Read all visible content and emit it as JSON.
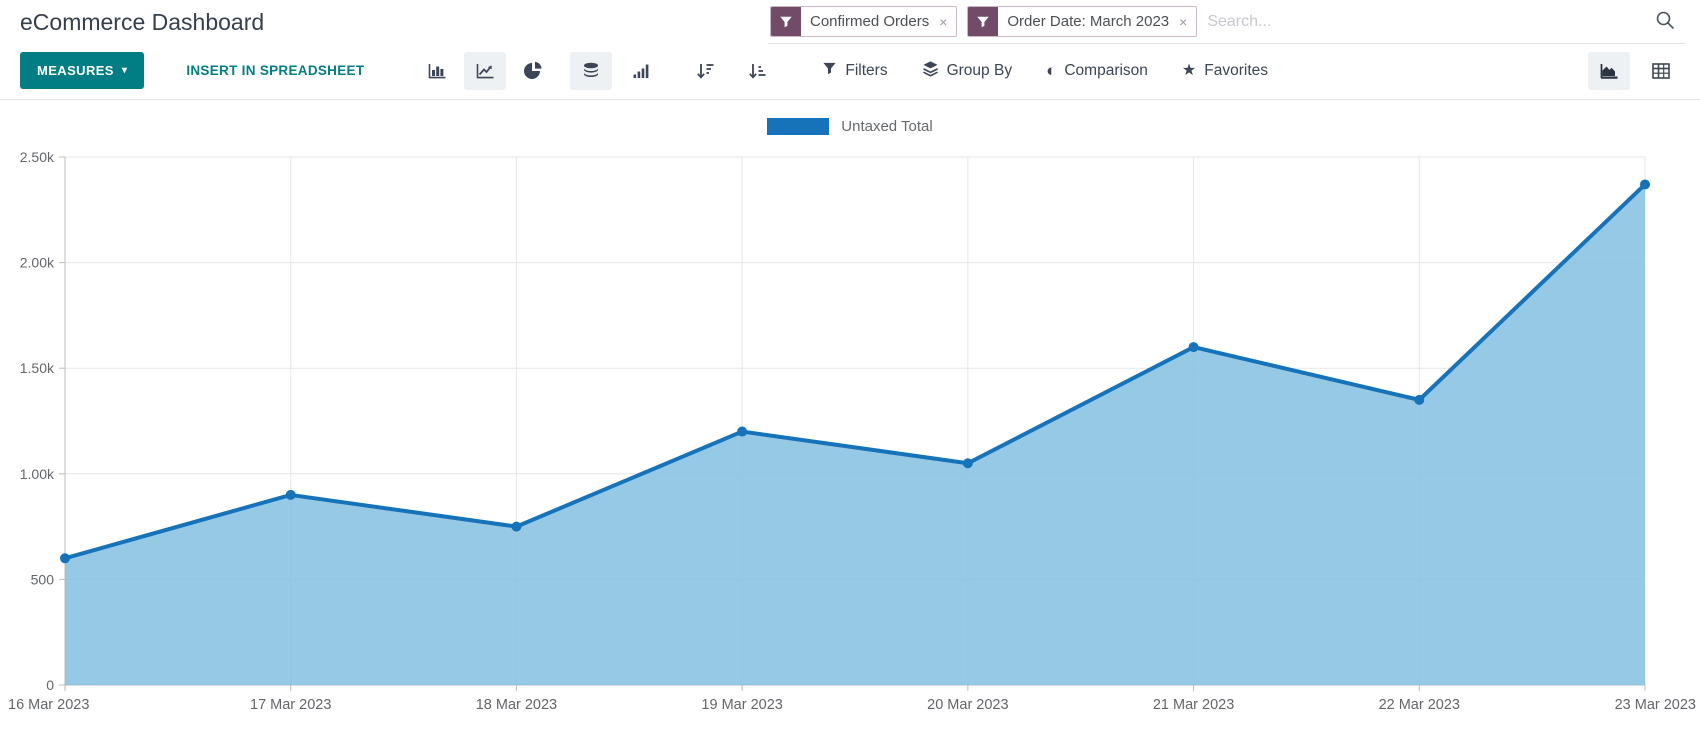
{
  "header": {
    "title": "eCommerce Dashboard",
    "facets": [
      {
        "label": "Confirmed Orders",
        "remove_symbol": "×"
      },
      {
        "label": "Order Date: March 2023",
        "remove_symbol": "×"
      }
    ],
    "search_placeholder": "Search..."
  },
  "toolbar": {
    "measures_label": "MEASURES",
    "measures_caret": "▾",
    "insert_label": "INSERT IN SPREADSHEET",
    "filters_label": "Filters",
    "group_by_label": "Group By",
    "comparison_label": "Comparison",
    "favorites_label": "Favorites",
    "icons": {
      "comparison_glyph": "◐",
      "favorites_glyph": "★",
      "selected_view_buttons": [
        "line-chart",
        "stacked",
        "area-chart"
      ]
    }
  },
  "chart_data": {
    "type": "area",
    "title": "",
    "xlabel": "",
    "ylabel": "",
    "grid": true,
    "legend_position": "top",
    "x": [
      "16 Mar 2023",
      "17 Mar 2023",
      "18 Mar 2023",
      "19 Mar 2023",
      "20 Mar 2023",
      "21 Mar 2023",
      "22 Mar 2023",
      "23 Mar 2023"
    ],
    "series": [
      {
        "name": "Untaxed Total",
        "values": [
          600,
          900,
          750,
          1200,
          1050,
          1600,
          1350,
          2370
        ]
      }
    ],
    "ylim": [
      0,
      2500
    ],
    "yticks": [
      {
        "label": "0",
        "value": 0
      },
      {
        "label": "500",
        "value": 500
      },
      {
        "label": "1.00k",
        "value": 1000
      },
      {
        "label": "1.50k",
        "value": 1500
      },
      {
        "label": "2.00k",
        "value": 2000
      },
      {
        "label": "2.50k",
        "value": 2500
      }
    ],
    "line_color": "#1673b9",
    "fill_color": "#84bfe2",
    "fill_opacity": 0.85,
    "point_radius": 5
  },
  "colors": {
    "accent_teal": "#017e84",
    "facet_purple": "#714b67",
    "text_dark": "#3c4656",
    "axis_text": "#63666a",
    "grid_line": "#e7e7e7",
    "axis_line": "#bcbcbc"
  }
}
